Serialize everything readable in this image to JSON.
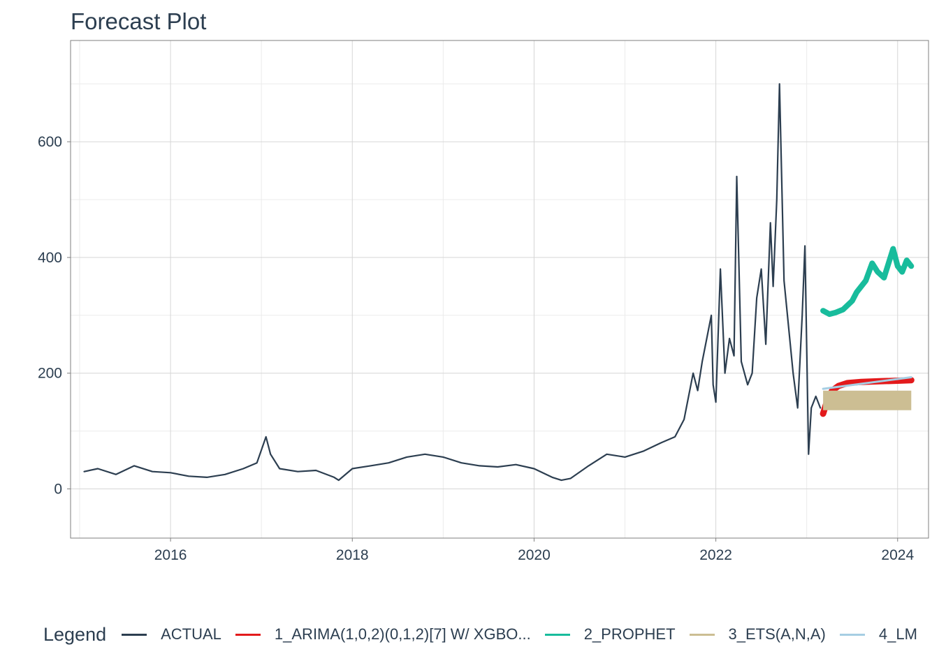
{
  "chart_data": {
    "type": "line",
    "title": "Forecast Plot",
    "xlabel": "",
    "ylabel": "",
    "xlim": [
      2014.9,
      2024.34
    ],
    "ylim": [
      -85,
      775
    ],
    "x_ticks": [
      "2016",
      "2018",
      "2020",
      "2022",
      "2024"
    ],
    "y_ticks": [
      "0",
      "200",
      "400",
      "600"
    ],
    "grid": true,
    "legend_position": "bottom",
    "legend_title": "Legend",
    "series": [
      {
        "name": "ACTUAL",
        "color": "#2c3e50",
        "x": [
          2015.05,
          2015.2,
          2015.4,
          2015.6,
          2015.8,
          2016.0,
          2016.2,
          2016.4,
          2016.6,
          2016.8,
          2016.95,
          2017.05,
          2017.1,
          2017.2,
          2017.4,
          2017.6,
          2017.8,
          2017.85,
          2018.0,
          2018.2,
          2018.4,
          2018.6,
          2018.8,
          2019.0,
          2019.2,
          2019.4,
          2019.6,
          2019.8,
          2020.0,
          2020.2,
          2020.3,
          2020.4,
          2020.6,
          2020.8,
          2021.0,
          2021.2,
          2021.4,
          2021.55,
          2021.65,
          2021.75,
          2021.8,
          2021.85,
          2021.9,
          2021.95,
          2021.97,
          2022.0,
          2022.05,
          2022.1,
          2022.15,
          2022.2,
          2022.23,
          2022.28,
          2022.35,
          2022.4,
          2022.45,
          2022.5,
          2022.55,
          2022.6,
          2022.63,
          2022.67,
          2022.7,
          2022.75,
          2022.8,
          2022.85,
          2022.9,
          2022.95,
          2022.98,
          2023.02,
          2023.05,
          2023.1,
          2023.15
        ],
        "y": [
          30,
          35,
          25,
          40,
          30,
          28,
          22,
          20,
          25,
          35,
          45,
          90,
          60,
          35,
          30,
          32,
          20,
          15,
          35,
          40,
          45,
          55,
          60,
          55,
          45,
          40,
          38,
          42,
          35,
          20,
          15,
          18,
          40,
          60,
          55,
          65,
          80,
          90,
          120,
          200,
          170,
          220,
          260,
          300,
          180,
          150,
          380,
          200,
          260,
          230,
          540,
          220,
          180,
          200,
          330,
          380,
          250,
          460,
          350,
          500,
          700,
          360,
          280,
          200,
          140,
          300,
          420,
          60,
          140,
          160,
          140
        ]
      },
      {
        "name": "1_ARIMA(1,0,2)(0,1,2)[7] W/ XGBO...",
        "color": "#e31a1c",
        "x": [
          2023.18,
          2023.22,
          2023.28,
          2023.35,
          2023.45,
          2023.6,
          2023.8,
          2024.0,
          2024.15
        ],
        "y": [
          130,
          150,
          170,
          178,
          183,
          185,
          186,
          187,
          188
        ]
      },
      {
        "name": "2_PROPHET",
        "color": "#18bc9c",
        "x": [
          2023.18,
          2023.25,
          2023.32,
          2023.4,
          2023.5,
          2023.55,
          2023.65,
          2023.72,
          2023.78,
          2023.85,
          2023.9,
          2023.95,
          2024.0,
          2024.05,
          2024.1,
          2024.15
        ],
        "y": [
          308,
          302,
          305,
          310,
          325,
          340,
          360,
          390,
          375,
          365,
          390,
          415,
          385,
          375,
          395,
          385
        ]
      },
      {
        "name": "3_ETS(A,N,A)",
        "color": "#ccbe93",
        "x": [
          2023.18,
          2024.15
        ],
        "y": [
          153,
          153
        ]
      },
      {
        "name": "4_LM",
        "color": "#a6cee3",
        "x": [
          2023.18,
          2024.15
        ],
        "y": [
          173,
          193
        ]
      }
    ]
  }
}
